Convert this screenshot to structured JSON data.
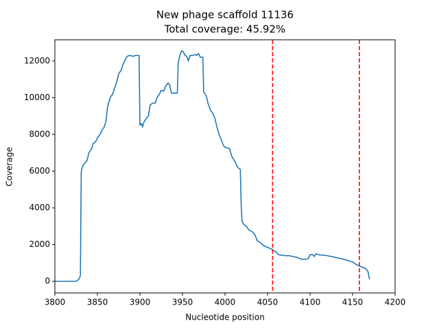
{
  "chart_data": {
    "type": "line",
    "title": "New phage scaffold 11136",
    "subtitle": "Total coverage: 45.92%",
    "x_label": "Nucleotide position",
    "y_label": "Coverage",
    "x": [
      3800,
      3825,
      3828,
      3830,
      3831,
      3833,
      3836,
      3838,
      3840,
      3843,
      3845,
      3848,
      3850,
      3853,
      3855,
      3858,
      3860,
      3862,
      3865,
      3868,
      3870,
      3873,
      3875,
      3878,
      3880,
      3883,
      3885,
      3888,
      3892,
      3895,
      3899,
      3900,
      3902,
      3903,
      3905,
      3908,
      3910,
      3912,
      3915,
      3918,
      3920,
      3923,
      3925,
      3928,
      3930,
      3933,
      3935,
      3937,
      3940,
      3944,
      3945,
      3947,
      3949,
      3951,
      3953,
      3955,
      3957,
      3959,
      3962,
      3965,
      3967,
      3969,
      3971,
      3974,
      3975,
      3978,
      3980,
      3983,
      3985,
      3988,
      3990,
      3993,
      3995,
      3998,
      4000,
      4003,
      4005,
      4008,
      4012,
      4015,
      4018,
      4019,
      4020,
      4022,
      4025,
      4028,
      4032,
      4035,
      4038,
      4042,
      4045,
      4050,
      4055,
      4060,
      4063,
      4070,
      4075,
      4080,
      4085,
      4090,
      4095,
      4098,
      4100,
      4103,
      4105,
      4107,
      4110,
      4120,
      4130,
      4140,
      4150,
      4155,
      4160,
      4165,
      4168,
      4170
    ],
    "series": [
      {
        "name": "coverage",
        "color": "#1f77b4",
        "values": [
          0,
          0,
          100,
          300,
          6000,
          6300,
          6500,
          6600,
          7000,
          7200,
          7500,
          7600,
          7800,
          8000,
          8200,
          8400,
          8700,
          9500,
          10000,
          10200,
          10500,
          10900,
          11300,
          11500,
          11800,
          12100,
          12250,
          12300,
          12250,
          12300,
          12300,
          8500,
          8600,
          8400,
          8700,
          8900,
          9000,
          9600,
          9700,
          9700,
          10000,
          10200,
          10400,
          10350,
          10600,
          10800,
          10700,
          10250,
          10250,
          10250,
          11900,
          12300,
          12550,
          12500,
          12300,
          12250,
          12000,
          12300,
          12300,
          12350,
          12300,
          12400,
          12200,
          12200,
          10300,
          10100,
          9700,
          9300,
          9200,
          8900,
          8500,
          8000,
          7800,
          7400,
          7300,
          7250,
          7250,
          6800,
          6500,
          6200,
          6100,
          4200,
          3300,
          3100,
          3000,
          2800,
          2700,
          2550,
          2200,
          2100,
          1950,
          1850,
          1750,
          1600,
          1450,
          1400,
          1400,
          1350,
          1300,
          1200,
          1200,
          1250,
          1450,
          1450,
          1350,
          1500,
          1450,
          1400,
          1300,
          1200,
          1050,
          900,
          800,
          700,
          550,
          100
        ]
      }
    ],
    "vlines": [
      4056,
      4158
    ],
    "vline_color": "#ff0000",
    "xlim": [
      3800,
      4200
    ],
    "xticks": [
      3800,
      3850,
      3900,
      3950,
      4000,
      4050,
      4100,
      4150,
      4200
    ],
    "ylim": [
      -630,
      13150
    ],
    "yticks": [
      0,
      2000,
      4000,
      6000,
      8000,
      10000,
      12000
    ]
  }
}
